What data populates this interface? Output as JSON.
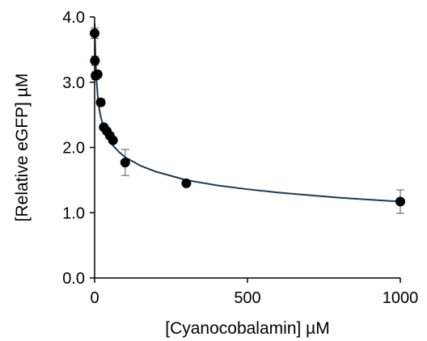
{
  "chart_data": {
    "type": "scatter",
    "title": "",
    "xlabel": "[Cyanocobalamin] µM",
    "ylabel": "[Relative eGFP] µM",
    "xlim": [
      0,
      1000
    ],
    "ylim": [
      0.0,
      4.0
    ],
    "x_ticks": [
      0,
      500,
      1000
    ],
    "x_tick_labels": [
      "0",
      "500",
      "1000"
    ],
    "y_ticks": [
      0.0,
      1.0,
      2.0,
      3.0,
      4.0
    ],
    "y_tick_labels": [
      "0.0",
      "1.0",
      "2.0",
      "3.0",
      "4.0"
    ],
    "grid": false,
    "legend": "none",
    "colors": {
      "points": "#000000",
      "fit": "#1f3a4d",
      "axes": "#000000"
    },
    "points": [
      {
        "x": 0,
        "y": 3.75,
        "err": 0.08
      },
      {
        "x": 1,
        "y": 3.33,
        "err": 0.07
      },
      {
        "x": 3,
        "y": 3.1,
        "err": 0.06
      },
      {
        "x": 10,
        "y": 3.12,
        "err": 0.05
      },
      {
        "x": 20,
        "y": 2.69,
        "err": 0.05
      },
      {
        "x": 30,
        "y": 2.31,
        "err": 0.04
      },
      {
        "x": 40,
        "y": 2.25,
        "err": 0.04
      },
      {
        "x": 50,
        "y": 2.18,
        "err": 0.04
      },
      {
        "x": 60,
        "y": 2.11,
        "err": 0.04
      },
      {
        "x": 100,
        "y": 1.77,
        "err": 0.2
      },
      {
        "x": 300,
        "y": 1.45,
        "err": 0.04
      },
      {
        "x": 1000,
        "y": 1.17,
        "err": 0.18
      }
    ],
    "fit_curve": [
      [
        0,
        3.9
      ],
      [
        1,
        3.7
      ],
      [
        2,
        3.52
      ],
      [
        4,
        3.25
      ],
      [
        6,
        3.05
      ],
      [
        10,
        2.8
      ],
      [
        15,
        2.6
      ],
      [
        20,
        2.47
      ],
      [
        30,
        2.3
      ],
      [
        40,
        2.18
      ],
      [
        60,
        2.03
      ],
      [
        80,
        1.93
      ],
      [
        100,
        1.85
      ],
      [
        150,
        1.72
      ],
      [
        200,
        1.63
      ],
      [
        300,
        1.5
      ],
      [
        400,
        1.42
      ],
      [
        500,
        1.36
      ],
      [
        600,
        1.31
      ],
      [
        700,
        1.27
      ],
      [
        800,
        1.23
      ],
      [
        900,
        1.2
      ],
      [
        1000,
        1.17
      ]
    ]
  }
}
